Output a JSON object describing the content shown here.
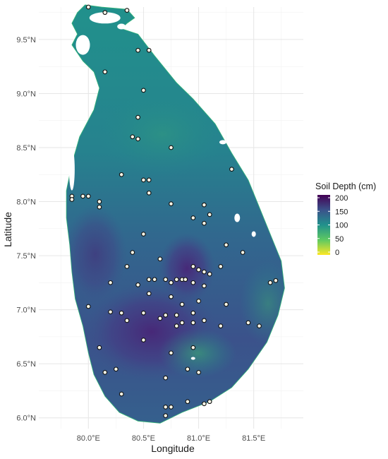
{
  "chart_data": {
    "type": "scatter",
    "xlabel": "Longitude",
    "ylabel": "Latitude",
    "xlim": [
      79.55,
      81.95
    ],
    "ylim": [
      5.9,
      9.8
    ],
    "x_ticks": [
      {
        "value": 80.0,
        "label": "80.0°E"
      },
      {
        "value": 80.5,
        "label": "80.5°E"
      },
      {
        "value": 81.0,
        "label": "81.0°E"
      },
      {
        "value": 81.5,
        "label": "81.5°E"
      }
    ],
    "y_ticks": [
      {
        "value": 6.0,
        "label": "6.0°N"
      },
      {
        "value": 6.5,
        "label": "6.5°N"
      },
      {
        "value": 7.0,
        "label": "7.0°N"
      },
      {
        "value": 7.5,
        "label": "7.5°N"
      },
      {
        "value": 8.0,
        "label": "8.0°N"
      },
      {
        "value": 8.5,
        "label": "8.5°N"
      },
      {
        "value": 9.0,
        "label": "9.0°N"
      },
      {
        "value": 9.5,
        "label": "9.5°N"
      }
    ],
    "grid": true,
    "legend": {
      "title": "Soil Depth (cm)",
      "position": "right",
      "min": 0,
      "max": 200,
      "ticks": [
        "200",
        "150",
        "100",
        "50",
        "0"
      ],
      "colors": [
        "#fde725",
        "#5ec962",
        "#21918c",
        "#3b528b",
        "#440154"
      ]
    },
    "points": [
      [
        80.0,
        9.8
      ],
      [
        80.15,
        9.75
      ],
      [
        80.35,
        9.77
      ],
      [
        80.45,
        9.4
      ],
      [
        80.55,
        9.4
      ],
      [
        80.15,
        9.2
      ],
      [
        80.5,
        9.03
      ],
      [
        80.45,
        8.78
      ],
      [
        80.4,
        8.6
      ],
      [
        80.45,
        8.58
      ],
      [
        80.75,
        8.5
      ],
      [
        80.3,
        8.25
      ],
      [
        80.5,
        8.2
      ],
      [
        80.55,
        8.2
      ],
      [
        81.3,
        8.3
      ],
      [
        79.85,
        8.05
      ],
      [
        79.85,
        8.02
      ],
      [
        79.95,
        8.05
      ],
      [
        80.0,
        8.05
      ],
      [
        80.1,
        8.0
      ],
      [
        80.1,
        7.95
      ],
      [
        80.55,
        8.08
      ],
      [
        80.75,
        7.98
      ],
      [
        81.05,
        7.97
      ],
      [
        81.1,
        7.88
      ],
      [
        81.05,
        7.8
      ],
      [
        80.95,
        7.85
      ],
      [
        80.5,
        7.7
      ],
      [
        81.25,
        7.6
      ],
      [
        81.4,
        7.53
      ],
      [
        80.4,
        7.53
      ],
      [
        80.65,
        7.47
      ],
      [
        80.95,
        7.4
      ],
      [
        81.0,
        7.37
      ],
      [
        81.05,
        7.35
      ],
      [
        81.1,
        7.33
      ],
      [
        81.2,
        7.4
      ],
      [
        80.35,
        7.4
      ],
      [
        80.2,
        7.25
      ],
      [
        80.45,
        7.23
      ],
      [
        80.55,
        7.28
      ],
      [
        80.6,
        7.28
      ],
      [
        80.7,
        7.28
      ],
      [
        80.75,
        7.25
      ],
      [
        80.8,
        7.28
      ],
      [
        80.85,
        7.28
      ],
      [
        80.88,
        7.28
      ],
      [
        80.95,
        7.25
      ],
      [
        81.05,
        7.22
      ],
      [
        81.65,
        7.25
      ],
      [
        81.7,
        7.27
      ],
      [
        80.55,
        7.15
      ],
      [
        80.75,
        7.12
      ],
      [
        80.85,
        7.05
      ],
      [
        81.0,
        7.08
      ],
      [
        81.25,
        7.05
      ],
      [
        80.0,
        7.03
      ],
      [
        80.2,
        6.98
      ],
      [
        80.3,
        6.97
      ],
      [
        80.5,
        6.97
      ],
      [
        80.7,
        6.95
      ],
      [
        80.8,
        6.95
      ],
      [
        80.95,
        6.97
      ],
      [
        80.35,
        6.9
      ],
      [
        80.65,
        6.92
      ],
      [
        80.85,
        6.88
      ],
      [
        80.95,
        6.88
      ],
      [
        81.05,
        6.9
      ],
      [
        80.8,
        6.85
      ],
      [
        81.2,
        6.85
      ],
      [
        81.45,
        6.88
      ],
      [
        81.55,
        6.85
      ],
      [
        80.1,
        6.65
      ],
      [
        80.5,
        6.72
      ],
      [
        80.75,
        6.6
      ],
      [
        80.95,
        6.65
      ],
      [
        80.9,
        6.45
      ],
      [
        81.0,
        6.42
      ],
      [
        80.25,
        6.45
      ],
      [
        80.15,
        6.42
      ],
      [
        80.7,
        6.37
      ],
      [
        80.3,
        6.22
      ],
      [
        80.9,
        6.15
      ],
      [
        81.05,
        6.13
      ],
      [
        81.1,
        6.15
      ],
      [
        80.7,
        6.1
      ],
      [
        80.75,
        6.1
      ],
      [
        80.7,
        6.02
      ]
    ]
  }
}
